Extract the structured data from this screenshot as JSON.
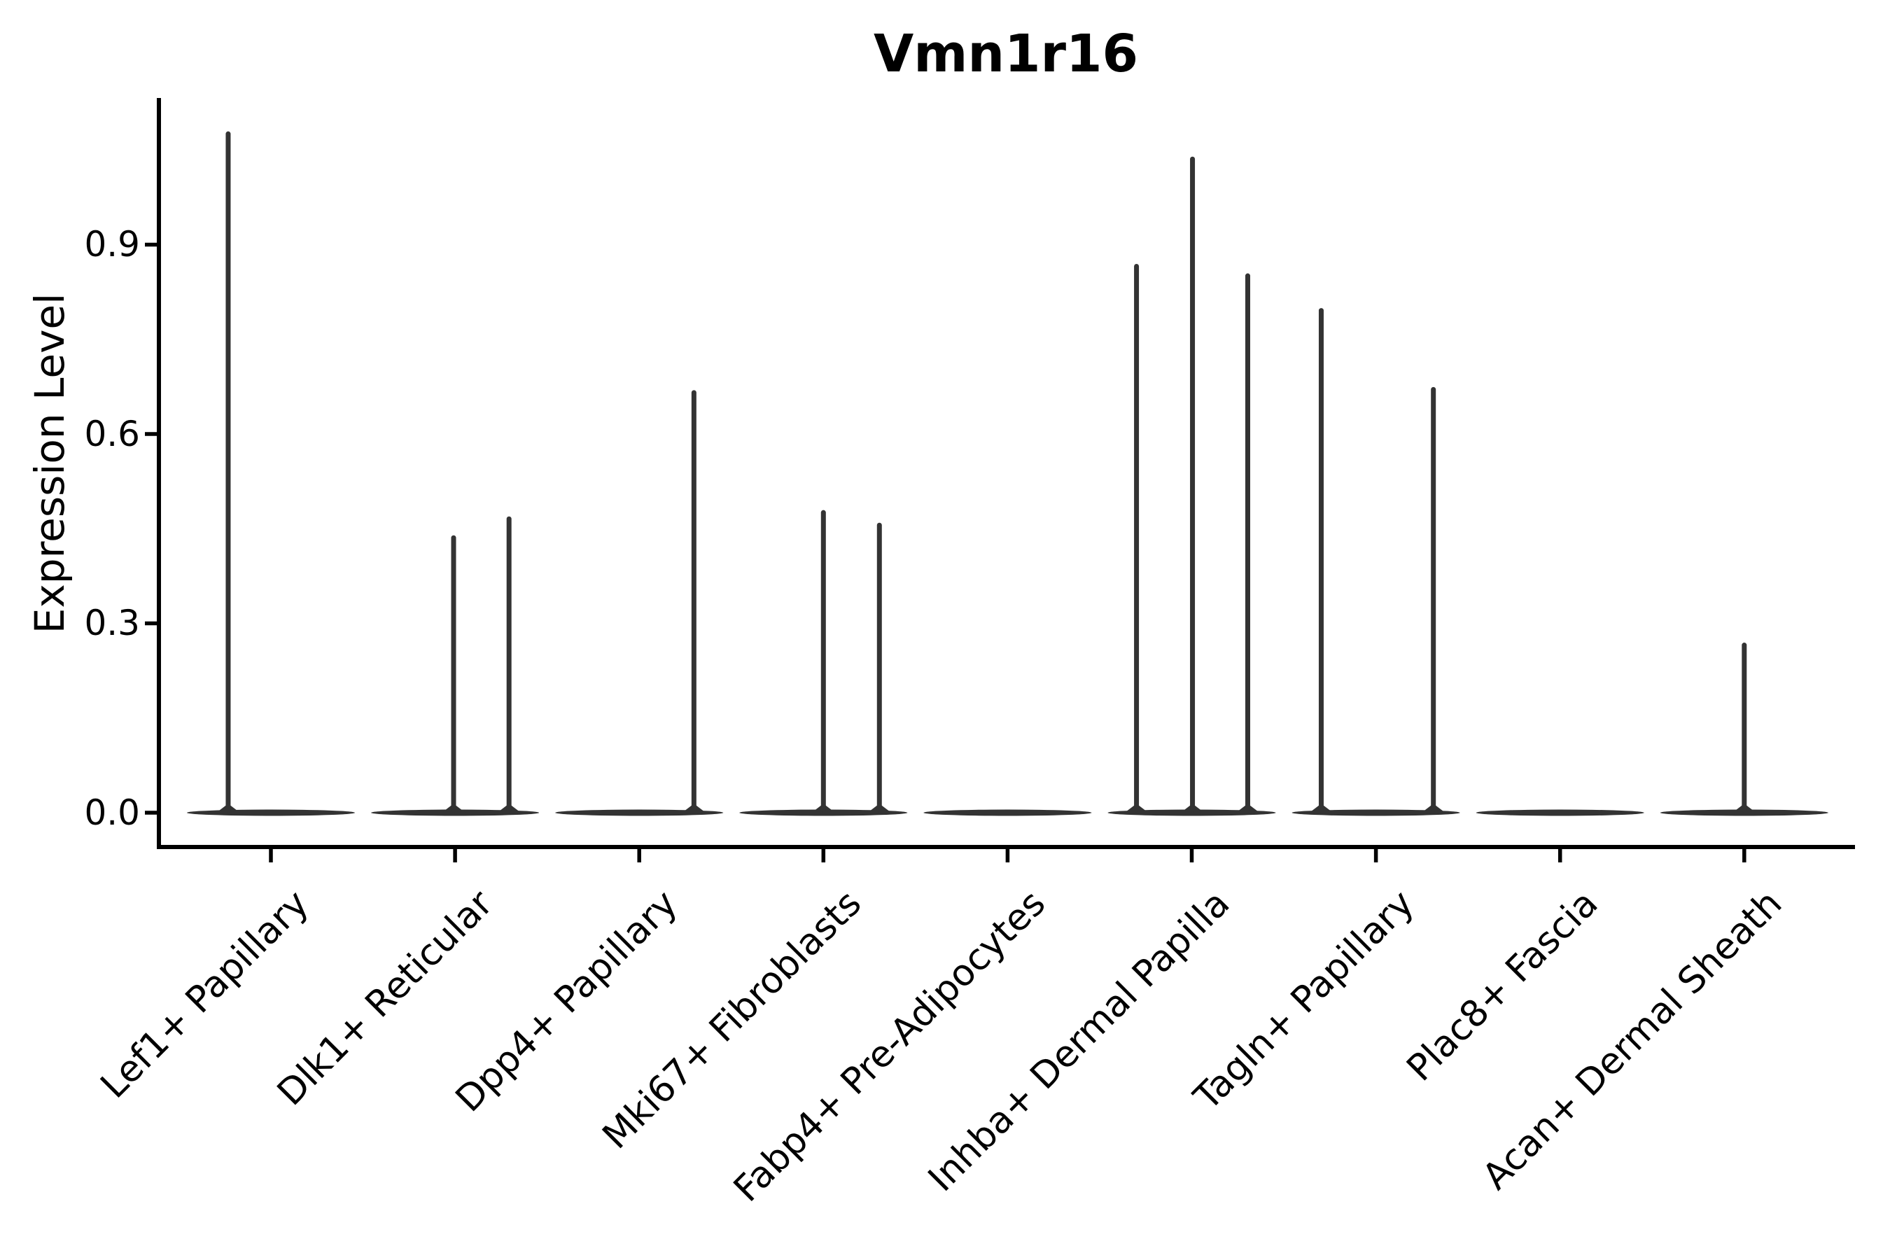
{
  "chart_data": {
    "type": "violin",
    "title": "Vmn1r16",
    "xlabel": "",
    "ylabel": "Expression Level",
    "categories": [
      "Lef1+ Papillary",
      "Dlk1+ Reticular",
      "Dpp4+ Papillary",
      "Mki67+ Fibroblasts",
      "Fabp4+ Pre-Adipocytes",
      "Inhba+ Dermal Papilla",
      "Tagln+ Papillary",
      "Plac8+ Fascia",
      "Acan+ Dermal Sheath"
    ],
    "ytick_values": [
      0.0,
      0.3,
      0.6,
      0.9
    ],
    "ytick_labels": [
      "0.0",
      "0.3",
      "0.6",
      "0.9"
    ],
    "ylim": [
      -0.054,
      1.132
    ],
    "grid": false,
    "legend": "none",
    "violin_color": "#333333",
    "axis_color": "#000000",
    "baseline_value": 0.0,
    "baseline_halfwidth_units": 0.45,
    "series": [
      {
        "category": "Lef1+ Papillary",
        "spikes": [
          {
            "x_offset_units": -0.232,
            "value": 1.08
          }
        ]
      },
      {
        "category": "Dlk1+ Reticular",
        "spikes": [
          {
            "x_offset_units": -0.008,
            "value": 0.44
          },
          {
            "x_offset_units": 0.293,
            "value": 0.47
          }
        ]
      },
      {
        "category": "Dpp4+ Papillary",
        "spikes": [
          {
            "x_offset_units": 0.297,
            "value": 0.67
          }
        ]
      },
      {
        "category": "Mki67+ Fibroblasts",
        "spikes": [
          {
            "x_offset_units": 0.0,
            "value": 0.48
          },
          {
            "x_offset_units": 0.304,
            "value": 0.46
          }
        ]
      },
      {
        "category": "Fabp4+ Pre-Adipocytes",
        "spikes": []
      },
      {
        "category": "Inhba+ Dermal Papilla",
        "spikes": [
          {
            "x_offset_units": -0.3,
            "value": 0.87
          },
          {
            "x_offset_units": 0.004,
            "value": 1.04
          },
          {
            "x_offset_units": 0.304,
            "value": 0.855
          }
        ]
      },
      {
        "category": "Tagln+ Papillary",
        "spikes": [
          {
            "x_offset_units": -0.297,
            "value": 0.8
          },
          {
            "x_offset_units": 0.312,
            "value": 0.675
          }
        ]
      },
      {
        "category": "Plac8+ Fascia",
        "spikes": []
      },
      {
        "category": "Acan+ Dermal Sheath",
        "spikes": [
          {
            "x_offset_units": 0.0,
            "value": 0.27
          }
        ]
      }
    ]
  }
}
